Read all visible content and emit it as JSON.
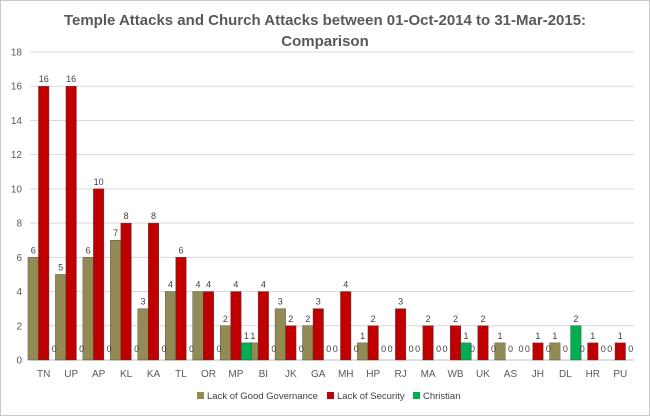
{
  "chart_data": {
    "type": "bar",
    "title_line1": "Temple Attacks and Church Attacks between 01-Oct-2014 to 31-Mar-2015:",
    "title_line2": "Comparison",
    "xlabel": "",
    "ylabel": "",
    "ylim": [
      0,
      18
    ],
    "yticks": [
      "0",
      "2",
      "4",
      "6",
      "8",
      "10",
      "12",
      "14",
      "16",
      "18"
    ],
    "grid": true,
    "legend_position": "bottom",
    "categories": [
      "TN",
      "UP",
      "AP",
      "KL",
      "KA",
      "TL",
      "OR",
      "MP",
      "BI",
      "JK",
      "GA",
      "MH",
      "HP",
      "RJ",
      "MA",
      "WB",
      "UK",
      "AS",
      "JH",
      "DL",
      "HR",
      "PU"
    ],
    "series": [
      {
        "name": "Lack of Good Governance",
        "color": "#948a54",
        "values": [
          6,
          5,
          6,
          7,
          3,
          4,
          4,
          2,
          1,
          3,
          2,
          0,
          1,
          0,
          0,
          0,
          0,
          1,
          0,
          1,
          0,
          0
        ]
      },
      {
        "name": "Lack of Security",
        "color": "#c00000",
        "values": [
          16,
          16,
          10,
          8,
          8,
          6,
          4,
          4,
          4,
          2,
          3,
          4,
          2,
          3,
          2,
          2,
          2,
          0,
          1,
          0,
          1,
          1
        ]
      },
      {
        "name": "Christian",
        "color": "#00b050",
        "values": [
          0,
          0,
          0,
          0,
          0,
          0,
          0,
          1,
          0,
          0,
          0,
          0,
          0,
          0,
          0,
          1,
          0,
          0,
          0,
          2,
          0,
          0
        ]
      }
    ]
  }
}
